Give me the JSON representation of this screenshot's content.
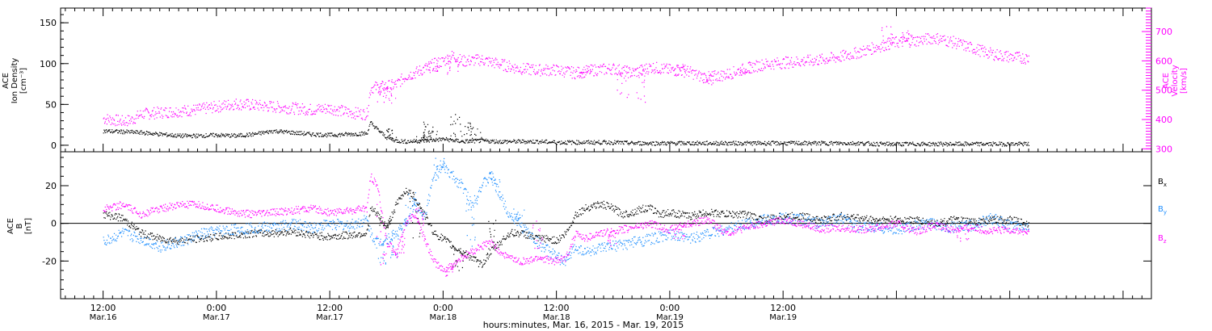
{
  "chart_data": [
    {
      "type": "scatter",
      "panel": "top",
      "ylabel_left": [
        "ACE",
        "Ion Density",
        "[cm⁻³]"
      ],
      "ylabel_right": [
        "ACE",
        "Velocity",
        "[km/s]"
      ],
      "left_axis": {
        "ylim": [
          -8,
          168
        ],
        "ticks": [
          0,
          50,
          100,
          150
        ]
      },
      "right_axis": {
        "ylim": [
          290,
          780
        ],
        "ticks": [
          300,
          400,
          500,
          600,
          700
        ]
      },
      "series": [
        {
          "key": "density",
          "axis": "left",
          "color": "#000000",
          "x_hours": [
            0,
            2,
            4,
            6,
            8,
            10,
            12,
            14,
            16,
            18,
            20,
            22,
            24,
            26,
            27.9,
            28.3,
            29,
            30,
            31,
            32,
            34,
            36,
            38,
            40,
            42,
            44,
            46,
            48,
            50,
            52,
            54,
            56,
            58,
            60,
            62,
            64,
            66,
            68,
            70,
            72,
            74,
            76,
            78,
            80,
            82,
            84,
            86,
            88,
            90,
            92,
            94,
            96,
            98
          ],
          "values": [
            18,
            17,
            16,
            14,
            12,
            12,
            13,
            12,
            14,
            18,
            16,
            14,
            13,
            14,
            15,
            28,
            20,
            10,
            6,
            5,
            6,
            8,
            5,
            6,
            5,
            5,
            5,
            4,
            4,
            4,
            4,
            3,
            3,
            3,
            3,
            3,
            3,
            3,
            3,
            3,
            3,
            3,
            3,
            3,
            2,
            2,
            2,
            2,
            2,
            2,
            2,
            2,
            2
          ],
          "spikes": [
            [
              30.5,
              22
            ],
            [
              33.5,
              17
            ],
            [
              34.5,
              30
            ],
            [
              35,
              18
            ],
            [
              37.3,
              40
            ],
            [
              38.5,
              30
            ],
            [
              39.5,
              25
            ]
          ]
        },
        {
          "key": "velocity",
          "axis": "right",
          "color": "#ff00ff",
          "x_hours": [
            0,
            2,
            3,
            4,
            6,
            8,
            10,
            12,
            14,
            16,
            18,
            20,
            22,
            24,
            26,
            27.9,
            28.3,
            30,
            31,
            32,
            33,
            34,
            35,
            36,
            37,
            38,
            40,
            42,
            44,
            46,
            48,
            50,
            52,
            54,
            56,
            58,
            60,
            62,
            63,
            64,
            66,
            68,
            70,
            72,
            74,
            76,
            78,
            80,
            82,
            84,
            86,
            88,
            90,
            92,
            94,
            96,
            98
          ],
          "values": [
            405,
            395,
            400,
            420,
            425,
            430,
            435,
            445,
            455,
            450,
            445,
            440,
            435,
            440,
            425,
            420,
            510,
            515,
            520,
            550,
            560,
            575,
            590,
            600,
            620,
            600,
            605,
            590,
            575,
            570,
            570,
            560,
            570,
            575,
            560,
            580,
            570,
            565,
            550,
            545,
            555,
            575,
            590,
            595,
            600,
            605,
            615,
            630,
            650,
            665,
            670,
            680,
            665,
            645,
            625,
            615,
            610
          ],
          "spikes": [
            [
              29.5,
              460
            ],
            [
              30.5,
              455
            ],
            [
              35,
              560
            ],
            [
              37,
              540
            ],
            [
              51,
              560
            ],
            [
              55,
              455
            ],
            [
              57,
              450
            ],
            [
              61,
              590
            ],
            [
              64,
              520
            ],
            [
              68,
              560
            ],
            [
              83,
              720
            ],
            [
              85,
              705
            ]
          ]
        }
      ]
    },
    {
      "type": "scatter",
      "panel": "bottom",
      "ylabel_left": [
        "ACE",
        "B",
        "[nT]"
      ],
      "left_axis": {
        "ylim": [
          -40,
          38
        ],
        "ticks": [
          -20,
          0,
          20
        ]
      },
      "zero_line": true,
      "legend": [
        "Bx",
        "By",
        "Bz"
      ],
      "series": [
        {
          "name": "Bx",
          "color": "#000000",
          "x_hours": [
            0,
            2,
            4,
            6,
            8,
            10,
            12,
            14,
            16,
            18,
            20,
            22,
            24,
            26,
            27.9,
            28.3,
            29,
            30,
            31,
            32,
            33,
            34,
            35,
            36,
            37,
            38,
            39,
            40,
            41,
            42,
            43,
            44,
            45,
            46,
            47,
            48,
            49,
            50,
            51,
            52,
            53,
            54,
            55,
            56,
            57,
            58,
            59,
            60,
            62,
            64,
            66,
            68,
            70,
            72,
            74,
            76,
            78,
            80,
            82,
            84,
            86,
            88,
            90,
            92,
            94,
            96,
            98
          ],
          "values": [
            5,
            3,
            -5,
            -8,
            -9,
            -8,
            -7,
            -6,
            -5,
            -5,
            -4,
            -6,
            -7,
            -6,
            -5,
            8,
            5,
            -2,
            10,
            18,
            14,
            5,
            -5,
            -8,
            -12,
            -15,
            -18,
            -22,
            -15,
            -10,
            -5,
            -5,
            -6,
            -8,
            -8,
            -9,
            -5,
            5,
            8,
            10,
            10,
            8,
            5,
            6,
            8,
            8,
            5,
            6,
            4,
            6,
            5,
            5,
            2,
            4,
            4,
            2,
            4,
            3,
            2,
            2,
            2,
            0,
            2,
            1,
            2,
            2,
            0
          ],
          "spikes": [
            [
              29.8,
              -2
            ],
            [
              33,
              -10
            ],
            [
              37.5,
              -25
            ],
            [
              41,
              5
            ]
          ]
        },
        {
          "name": "By",
          "color": "#1f8fff",
          "x_hours": [
            0,
            2,
            4,
            6,
            8,
            10,
            12,
            14,
            16,
            18,
            20,
            22,
            24,
            26,
            27.9,
            28.3,
            29,
            30,
            31,
            32,
            33,
            34,
            35,
            36,
            37,
            38,
            39,
            40,
            41,
            42,
            43,
            44,
            45,
            46,
            47,
            48,
            49,
            50,
            51,
            52,
            53,
            54,
            55,
            56,
            57,
            58,
            59,
            60,
            62,
            64,
            66,
            68,
            70,
            72,
            74,
            76,
            78,
            80,
            82,
            84,
            86,
            88,
            90,
            92,
            94,
            96,
            98
          ],
          "values": [
            -10,
            -5,
            -8,
            -12,
            -10,
            -6,
            -4,
            -3,
            -2,
            -2,
            0,
            -2,
            0,
            -1,
            2,
            -5,
            -10,
            -8,
            -5,
            0,
            10,
            5,
            25,
            30,
            25,
            20,
            10,
            20,
            25,
            15,
            5,
            0,
            -5,
            -10,
            -14,
            -18,
            -20,
            -12,
            -15,
            -14,
            -13,
            -12,
            -11,
            -10,
            -9,
            -8,
            -7,
            -6,
            -8,
            -5,
            -3,
            0,
            2,
            3,
            2,
            0,
            3,
            -2,
            -2,
            -3,
            -1,
            0,
            -2,
            -1,
            3,
            -1,
            -2
          ],
          "spikes": [
            [
              29.5,
              -22
            ],
            [
              31,
              -20
            ],
            [
              32.5,
              18
            ],
            [
              35.5,
              35
            ],
            [
              39,
              -15
            ],
            [
              41.5,
              28
            ],
            [
              44,
              8
            ]
          ]
        },
        {
          "name": "Bz",
          "color": "#ff00ff",
          "x_hours": [
            0,
            2,
            4,
            6,
            8,
            10,
            12,
            14,
            16,
            18,
            20,
            22,
            24,
            26,
            27.9,
            28.3,
            29,
            30,
            31,
            32,
            33,
            34,
            35,
            36,
            37,
            38,
            39,
            40,
            41,
            42,
            43,
            44,
            45,
            46,
            47,
            48,
            49,
            50,
            51,
            52,
            53,
            54,
            55,
            56,
            57,
            58,
            59,
            60,
            62,
            64,
            66,
            68,
            70,
            72,
            74,
            76,
            78,
            80,
            82,
            84,
            86,
            88,
            90,
            92,
            94,
            96,
            98
          ],
          "values": [
            8,
            10,
            5,
            8,
            10,
            10,
            8,
            6,
            5,
            6,
            7,
            8,
            6,
            7,
            8,
            25,
            20,
            -10,
            -15,
            0,
            5,
            -8,
            -20,
            -25,
            -22,
            -18,
            -15,
            -12,
            -10,
            -15,
            -18,
            -20,
            -20,
            -18,
            -19,
            -20,
            -18,
            -5,
            -8,
            -6,
            -5,
            -4,
            -3,
            -2,
            -1,
            0,
            -2,
            -3,
            0,
            2,
            -5,
            -2,
            0,
            2,
            0,
            -3,
            -2,
            -3,
            -2,
            0,
            -4,
            -1,
            -3,
            -2,
            -4,
            -3,
            -5
          ],
          "spikes": [
            [
              29.5,
              -25
            ],
            [
              31.5,
              -18
            ],
            [
              33.5,
              10
            ],
            [
              36.5,
              -28
            ],
            [
              46,
              3
            ],
            [
              54,
              -12
            ],
            [
              61,
              -8
            ],
            [
              91,
              -12
            ]
          ]
        }
      ]
    },
    {
      "type": "axis",
      "x_range_hours": [
        -4.5,
        111
      ],
      "x_major_hours": [
        0,
        12,
        24,
        36,
        48,
        60,
        72,
        84,
        96,
        108
      ],
      "x_tick_labels": [
        {
          "h": 0,
          "time": "12:00",
          "date": "Mar.16"
        },
        {
          "h": 12,
          "time": "0:00",
          "date": "Mar.17"
        },
        {
          "h": 24,
          "time": "12:00",
          "date": "Mar.17"
        },
        {
          "h": 36,
          "time": "0:00",
          "date": "Mar.18"
        },
        {
          "h": 48,
          "time": "12:00",
          "date": "Mar.18"
        },
        {
          "h": 60,
          "time": "0:00",
          "date": "Mar.19"
        },
        {
          "h": 72,
          "time": "12:00",
          "date": "Mar.19"
        }
      ],
      "xlabel": "hours:minutes, Mar. 16, 2015 - Mar. 19, 2015"
    }
  ]
}
